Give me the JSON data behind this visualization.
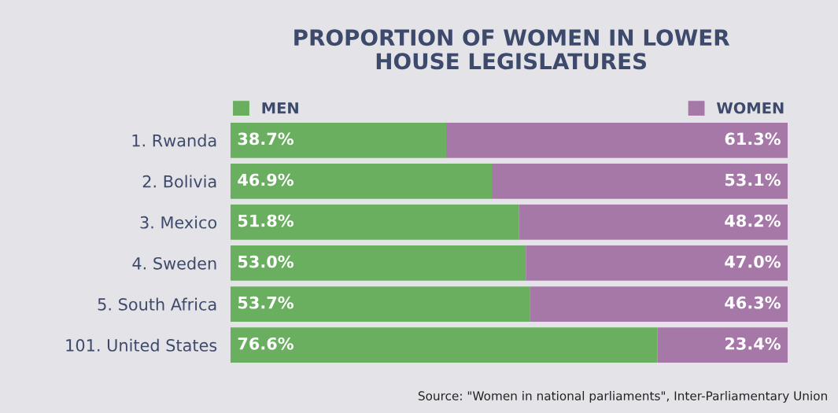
{
  "chart_data": {
    "type": "bar",
    "orientation": "horizontal",
    "stacked": true,
    "title": "PROPORTION OF WOMEN IN LOWER\nHOUSE LEGISLATURES",
    "categories": [
      "1. Rwanda",
      "2. Bolivia",
      "3. Mexico",
      "4. Sweden",
      "5. South Africa",
      "101. United States"
    ],
    "series": [
      {
        "name": "MEN",
        "color": "#6aae60",
        "values": [
          38.7,
          46.9,
          51.8,
          53.0,
          53.7,
          76.6
        ],
        "value_labels": [
          "38.7%",
          "46.9%",
          "51.8%",
          "53.0%",
          "53.7%",
          "76.6%"
        ]
      },
      {
        "name": "WOMEN",
        "color": "#a678a8",
        "values": [
          61.3,
          53.1,
          48.2,
          47.0,
          46.3,
          23.4
        ],
        "value_labels": [
          "61.3%",
          "53.1%",
          "48.2%",
          "47.0%",
          "46.3%",
          "23.4%"
        ]
      }
    ],
    "xlim": [
      0,
      100
    ],
    "tick_labels": "y",
    "grid": false,
    "legend": "top",
    "annotations": [
      "Source: \"Women in national parliaments\", Inter-Parliamentary Union"
    ]
  }
}
